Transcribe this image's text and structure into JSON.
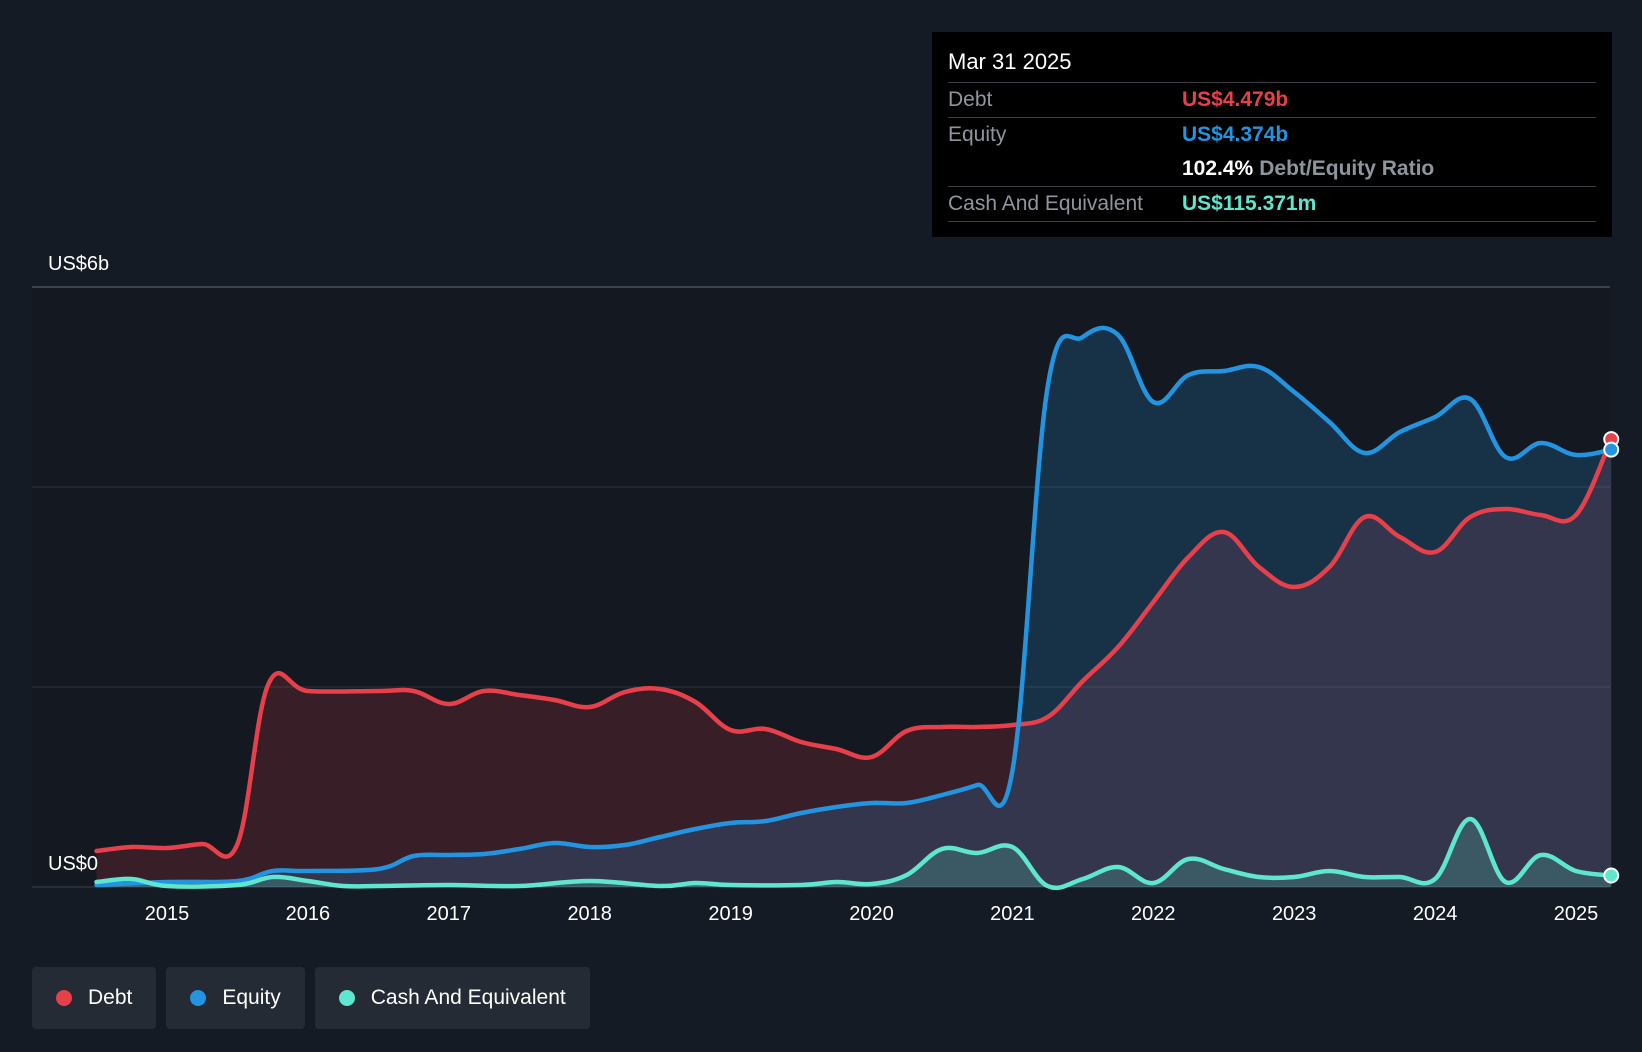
{
  "chart_data": {
    "type": "area",
    "title": "",
    "ylabel_top": "US$6b",
    "ylabel_bottom": "US$0",
    "ylim": [
      0,
      6
    ],
    "xlim": [
      2014.5,
      2025.25
    ],
    "x_ticks": [
      "2015",
      "2016",
      "2017",
      "2018",
      "2019",
      "2020",
      "2021",
      "2022",
      "2023",
      "2024",
      "2025"
    ],
    "series": [
      {
        "name": "Debt",
        "color": "#e8404a",
        "points": [
          [
            2014.5,
            0.36
          ],
          [
            2014.75,
            0.4
          ],
          [
            2015.0,
            0.39
          ],
          [
            2015.25,
            0.43
          ],
          [
            2015.5,
            0.43
          ],
          [
            2015.72,
            2.03
          ],
          [
            2016.0,
            1.96
          ],
          [
            2016.5,
            1.96
          ],
          [
            2016.75,
            1.96
          ],
          [
            2017.0,
            1.83
          ],
          [
            2017.25,
            1.96
          ],
          [
            2017.5,
            1.92
          ],
          [
            2017.75,
            1.87
          ],
          [
            2018.0,
            1.8
          ],
          [
            2018.25,
            1.95
          ],
          [
            2018.5,
            1.98
          ],
          [
            2018.75,
            1.85
          ],
          [
            2019.0,
            1.57
          ],
          [
            2019.25,
            1.58
          ],
          [
            2019.5,
            1.45
          ],
          [
            2019.75,
            1.38
          ],
          [
            2020.0,
            1.3
          ],
          [
            2020.25,
            1.56
          ],
          [
            2020.5,
            1.6
          ],
          [
            2020.75,
            1.6
          ],
          [
            2021.0,
            1.62
          ],
          [
            2021.25,
            1.7
          ],
          [
            2021.5,
            2.06
          ],
          [
            2021.75,
            2.4
          ],
          [
            2022.0,
            2.85
          ],
          [
            2022.25,
            3.3
          ],
          [
            2022.5,
            3.55
          ],
          [
            2022.75,
            3.2
          ],
          [
            2023.0,
            3.0
          ],
          [
            2023.25,
            3.2
          ],
          [
            2023.5,
            3.7
          ],
          [
            2023.75,
            3.5
          ],
          [
            2024.0,
            3.35
          ],
          [
            2024.25,
            3.7
          ],
          [
            2024.5,
            3.78
          ],
          [
            2024.75,
            3.72
          ],
          [
            2025.0,
            3.72
          ],
          [
            2025.25,
            4.479
          ]
        ]
      },
      {
        "name": "Equity",
        "color": "#2394df",
        "points": [
          [
            2014.5,
            0.02
          ],
          [
            2015.0,
            0.05
          ],
          [
            2015.5,
            0.06
          ],
          [
            2015.75,
            0.16
          ],
          [
            2016.0,
            0.16
          ],
          [
            2016.5,
            0.18
          ],
          [
            2016.75,
            0.31
          ],
          [
            2017.0,
            0.32
          ],
          [
            2017.25,
            0.33
          ],
          [
            2017.5,
            0.38
          ],
          [
            2017.75,
            0.44
          ],
          [
            2018.0,
            0.4
          ],
          [
            2018.25,
            0.42
          ],
          [
            2018.5,
            0.5
          ],
          [
            2018.75,
            0.58
          ],
          [
            2019.0,
            0.64
          ],
          [
            2019.25,
            0.66
          ],
          [
            2019.5,
            0.74
          ],
          [
            2019.75,
            0.8
          ],
          [
            2020.0,
            0.84
          ],
          [
            2020.25,
            0.84
          ],
          [
            2020.5,
            0.92
          ],
          [
            2020.75,
            1.02
          ],
          [
            2021.0,
            1.16
          ],
          [
            2021.25,
            5.0
          ],
          [
            2021.5,
            5.5
          ],
          [
            2021.75,
            5.52
          ],
          [
            2022.0,
            4.85
          ],
          [
            2022.25,
            5.12
          ],
          [
            2022.5,
            5.16
          ],
          [
            2022.75,
            5.2
          ],
          [
            2023.0,
            4.95
          ],
          [
            2023.25,
            4.65
          ],
          [
            2023.5,
            4.34
          ],
          [
            2023.75,
            4.55
          ],
          [
            2024.0,
            4.7
          ],
          [
            2024.25,
            4.88
          ],
          [
            2024.5,
            4.3
          ],
          [
            2024.75,
            4.44
          ],
          [
            2025.0,
            4.32
          ],
          [
            2025.25,
            4.374
          ]
        ]
      },
      {
        "name": "Cash And Equivalent",
        "color": "#5ee6cf",
        "points": [
          [
            2014.5,
            0.05
          ],
          [
            2014.75,
            0.08
          ],
          [
            2015.0,
            0.01
          ],
          [
            2015.5,
            0.02
          ],
          [
            2015.75,
            0.1
          ],
          [
            2016.0,
            0.06
          ],
          [
            2016.25,
            0.01
          ],
          [
            2016.5,
            0.01
          ],
          [
            2017.0,
            0.02
          ],
          [
            2017.5,
            0.01
          ],
          [
            2018.0,
            0.06
          ],
          [
            2018.5,
            0.01
          ],
          [
            2018.75,
            0.04
          ],
          [
            2019.0,
            0.02
          ],
          [
            2019.5,
            0.02
          ],
          [
            2019.75,
            0.05
          ],
          [
            2020.0,
            0.03
          ],
          [
            2020.25,
            0.12
          ],
          [
            2020.5,
            0.38
          ],
          [
            2020.75,
            0.34
          ],
          [
            2021.0,
            0.4
          ],
          [
            2021.25,
            0.01
          ],
          [
            2021.5,
            0.08
          ],
          [
            2021.75,
            0.2
          ],
          [
            2022.0,
            0.04
          ],
          [
            2022.25,
            0.28
          ],
          [
            2022.5,
            0.18
          ],
          [
            2022.75,
            0.1
          ],
          [
            2023.0,
            0.1
          ],
          [
            2023.25,
            0.16
          ],
          [
            2023.5,
            0.1
          ],
          [
            2023.75,
            0.1
          ],
          [
            2024.0,
            0.08
          ],
          [
            2024.25,
            0.68
          ],
          [
            2024.5,
            0.05
          ],
          [
            2024.75,
            0.32
          ],
          [
            2025.0,
            0.16
          ],
          [
            2025.25,
            0.115
          ]
        ]
      }
    ],
    "legend": "bottom-left"
  },
  "tooltip": {
    "date": "Mar 31 2025",
    "debt_label": "Debt",
    "debt_value": "US$4.479b",
    "equity_label": "Equity",
    "equity_value": "US$4.374b",
    "ratio_value": "102.4%",
    "ratio_label": "Debt/Equity Ratio",
    "cash_label": "Cash And Equivalent",
    "cash_value": "US$115.371m"
  },
  "legend": {
    "items": [
      {
        "label": "Debt",
        "color": "#e8404a"
      },
      {
        "label": "Equity",
        "color": "#2394df"
      },
      {
        "label": "Cash And Equivalent",
        "color": "#5ee6cf"
      }
    ]
  }
}
